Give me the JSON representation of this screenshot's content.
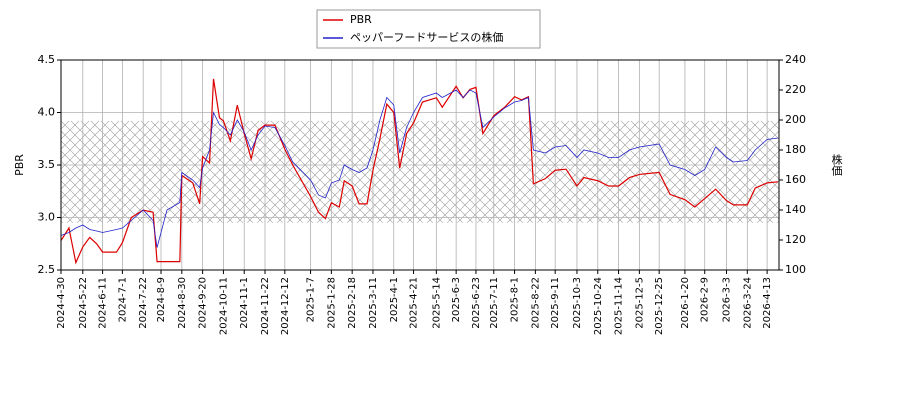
{
  "chart_data": {
    "type": "line",
    "x": [
      "2024-4-30",
      "2024-5-8",
      "2024-5-15",
      "2024-5-22",
      "2024-5-29",
      "2024-6-5",
      "2024-6-11",
      "2024-6-25",
      "2024-7-1",
      "2024-7-10",
      "2024-7-22",
      "2024-8-1",
      "2024-8-5",
      "2024-8-15",
      "2024-8-28",
      "2024-8-30",
      "2024-9-10",
      "2024-9-17",
      "2024-9-20",
      "2024-9-27",
      "2024-10-1",
      "2024-10-7",
      "2024-10-11",
      "2024-10-18",
      "2024-10-25",
      "2024-11-1",
      "2024-11-8",
      "2024-11-15",
      "2024-11-22",
      "2024-12-2",
      "2024-12-12",
      "2024-12-20",
      "2025-1-7",
      "2025-1-15",
      "2025-1-22",
      "2025-1-28",
      "2025-2-5",
      "2025-2-10",
      "2025-2-18",
      "2025-2-25",
      "2025-3-5",
      "2025-3-11",
      "2025-3-18",
      "2025-3-25",
      "2025-4-1",
      "2025-4-7",
      "2025-4-14",
      "2025-4-21",
      "2025-4-30",
      "2025-5-14",
      "2025-5-20",
      "2025-6-3",
      "2025-6-10",
      "2025-6-17",
      "2025-6-23",
      "2025-6-30",
      "2025-7-11",
      "2025-7-22",
      "2025-8-1",
      "2025-8-8",
      "2025-8-15",
      "2025-8-20",
      "2025-9-1",
      "2025-9-11",
      "2025-9-22",
      "2025-10-3",
      "2025-10-10",
      "2025-10-24",
      "2025-11-4",
      "2025-11-14",
      "2025-11-25",
      "2025-12-5",
      "2025-12-25",
      "2026-1-5",
      "2026-1-20",
      "2026-1-30",
      "2026-2-9",
      "2026-2-20",
      "2026-3-3",
      "2026-3-10",
      "2026-3-24",
      "2026-4-1",
      "2026-4-13",
      "2026-4-24"
    ],
    "series": [
      {
        "name": "PBR",
        "color": "#dd0000",
        "values": [
          2.78,
          2.9,
          2.57,
          2.72,
          2.81,
          2.75,
          2.67,
          2.67,
          2.76,
          3.0,
          3.07,
          3.05,
          2.58,
          2.58,
          2.58,
          3.4,
          3.33,
          3.13,
          3.58,
          3.52,
          4.32,
          3.95,
          3.92,
          3.73,
          4.07,
          3.8,
          3.56,
          3.83,
          3.88,
          3.88,
          3.65,
          3.5,
          3.2,
          3.05,
          2.99,
          3.14,
          3.1,
          3.35,
          3.3,
          3.13,
          3.13,
          3.45,
          3.75,
          4.08,
          4.0,
          3.47,
          3.8,
          3.9,
          4.1,
          4.14,
          4.05,
          4.25,
          4.14,
          4.22,
          4.24,
          3.8,
          3.97,
          4.05,
          4.15,
          4.12,
          4.15,
          3.32,
          3.37,
          3.45,
          3.46,
          3.3,
          3.38,
          3.35,
          3.3,
          3.3,
          3.38,
          3.41,
          3.43,
          3.22,
          3.17,
          3.1,
          3.18,
          3.27,
          3.16,
          3.12,
          3.12,
          3.28,
          3.33,
          3.34
        ]
      },
      {
        "name": "ペッパーフードサービスの株価",
        "color": "#2222cc",
        "axis": "y2",
        "values": [
          123,
          125,
          128,
          130,
          127,
          126,
          125,
          127,
          128,
          133,
          140,
          133,
          115,
          140,
          145,
          165,
          160,
          155,
          168,
          180,
          205,
          197,
          195,
          190,
          200,
          192,
          180,
          190,
          196,
          195,
          183,
          172,
          160,
          150,
          148,
          158,
          160,
          170,
          167,
          165,
          168,
          180,
          200,
          215,
          210,
          178,
          195,
          205,
          215,
          218,
          215,
          220,
          215,
          220,
          218,
          195,
          202,
          208,
          212,
          213,
          215,
          180,
          178,
          182,
          183,
          175,
          180,
          178,
          175,
          175,
          180,
          182,
          184,
          170,
          167,
          163,
          167,
          182,
          175,
          172,
          173,
          180,
          187,
          188
        ]
      }
    ],
    "xlim": [
      "2024-4-30",
      "2026-4-25"
    ],
    "xticks": [
      "2024-4-30",
      "2024-5-22",
      "2024-6-11",
      "2024-7-1",
      "2024-7-22",
      "2024-8-9",
      "2024-8-30",
      "2024-9-20",
      "2024-10-11",
      "2024-11-1",
      "2024-11-22",
      "2024-12-12",
      "2025-1-7",
      "2025-1-28",
      "2025-2-18",
      "2025-3-11",
      "2025-4-1",
      "2025-4-21",
      "2025-5-14",
      "2025-6-3",
      "2025-6-23",
      "2025-7-11",
      "2025-8-1",
      "2025-8-22",
      "2025-9-11",
      "2025-10-3",
      "2025-10-24",
      "2025-11-14",
      "2025-12-5",
      "2025-12-25",
      "2026-1-20",
      "2026-2-9",
      "2026-3-3",
      "2026-3-24",
      "2026-4-13"
    ],
    "ylabel": "PBR",
    "y2label": "株価",
    "ylim": [
      2.5,
      4.5
    ],
    "yticks": [
      2.5,
      {
        "value": 3,
        "label": "3.0"
      },
      3.5,
      {
        "value": 4,
        "label": "4.0"
      },
      4.5
    ],
    "y2lim": [
      100,
      240
    ],
    "y2ticks": [
      100,
      120,
      140,
      160,
      180,
      200,
      220,
      240
    ],
    "shaded_range": [
      2.95,
      3.92
    ],
    "grid": true
  }
}
